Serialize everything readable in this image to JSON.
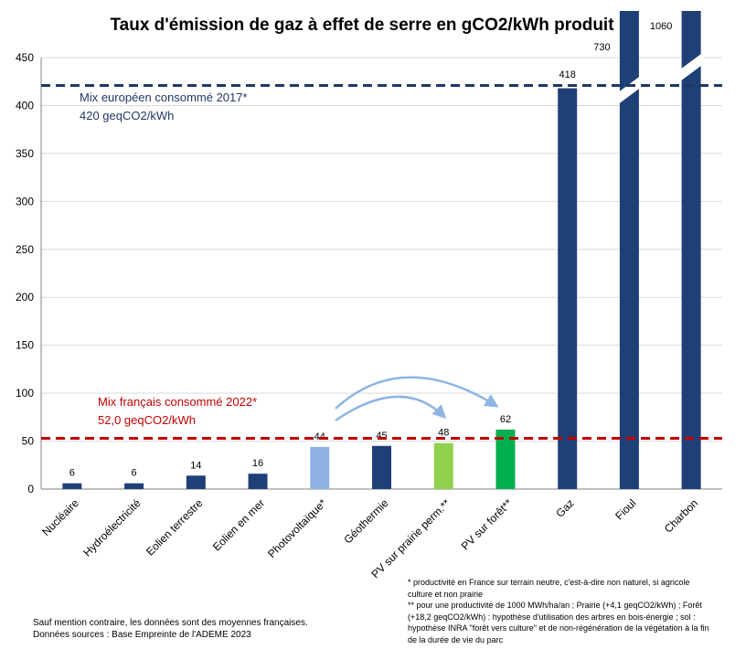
{
  "chart_data": {
    "type": "bar",
    "title": "Taux d'émission de gaz à effet de serre en gCO2/kWh produit",
    "categories": [
      "Nucléaire",
      "Hydroélectricité",
      "Eolien terrestre",
      "Eolien en mer",
      "Photovoltaïque*",
      "Géothermie",
      "PV sur prairie perm.**",
      "PV sur forêt**",
      "Gaz",
      "Fioul",
      "Charbon"
    ],
    "values": [
      6,
      6,
      14,
      16,
      44,
      45,
      48,
      62,
      418,
      730,
      1060
    ],
    "data_labels": [
      "6",
      "6",
      "14",
      "16",
      "44",
      "45",
      "48",
      "62",
      "418",
      "730",
      "1060"
    ],
    "colors": [
      "#1f3f77",
      "#1f3f77",
      "#1f3f77",
      "#1f3f77",
      "#8fb4e3",
      "#1f3f77",
      "#92d050",
      "#00b050",
      "#1f3f77",
      "#1f3f77",
      "#1f3f77"
    ],
    "ylim": [
      0,
      450
    ],
    "yticks": [
      "0",
      "50",
      "100",
      "150",
      "200",
      "250",
      "300",
      "350",
      "400",
      "450"
    ],
    "grid": true,
    "reference_lines": [
      {
        "value": 420,
        "color": "#1f3864",
        "label1": "Mix  européen consommé 2017*",
        "label2": "420 geqCO2/kWh"
      },
      {
        "value": 52,
        "color": "#c00000",
        "label1": "Mix français  consommé 2022*",
        "label2": "52,0  geqCO2/kWh"
      }
    ],
    "axis_breaks": [
      "Fioul",
      "Charbon"
    ]
  },
  "footnotes": {
    "left_1": "Sauf mention contraire, les données sont des moyennes françaises.",
    "left_2": "Données sources : Base Empreinte  de l'ADEME 2023",
    "right_1": "* productivité en France sur terrain neutre, c'est-à-dire non naturel, si agricole culture et non prairie",
    "right_2": "**  pour une productivité de 1000 MWh/ha/an ; Prairie (+4,1 geqCO2/kWh)  ; Forêt (+18,2 geqCO2/kWh)  :  hypothèse d'utilisation des arbres en bois-énergie ; sol : hypothèse INRA \"forêt vers culture\" et de non-régénération de la végétation à la fin de la durée de vie du parc"
  },
  "colors": {
    "arrow": "#8fb4e3",
    "grid": "#d9d9d9"
  }
}
